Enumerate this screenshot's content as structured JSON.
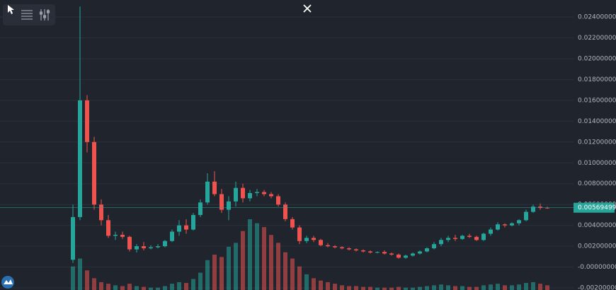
{
  "chart_data": {
    "type": "candlestick",
    "up_color": "#26a69a",
    "down_color": "#ef5350",
    "ylim": [
      -0.0022,
      0.02563
    ],
    "yticks": [
      {
        "value": 0.024,
        "label": "0.024000000"
      },
      {
        "value": 0.022,
        "label": "0.022000000"
      },
      {
        "value": 0.02,
        "label": "0.020000000"
      },
      {
        "value": 0.018,
        "label": "0.018000000"
      },
      {
        "value": 0.016,
        "label": "0.016000000"
      },
      {
        "value": 0.014,
        "label": "0.014000000"
      },
      {
        "value": 0.012,
        "label": "0.012000000"
      },
      {
        "value": 0.01,
        "label": "0.010000000"
      },
      {
        "value": 0.008,
        "label": "0.008000000"
      },
      {
        "value": 0.006,
        "label": "0.006000000"
      },
      {
        "value": 0.004,
        "label": "0.004000000"
      },
      {
        "value": 0.002,
        "label": "0.002000000"
      },
      {
        "value": 0,
        "label": "-0.000000000"
      },
      {
        "value": -0.002,
        "label": "-0.002000000"
      }
    ],
    "grid": true,
    "last_price": 0.005694996,
    "candles": [
      [
        0.0007,
        0.006,
        0.0004,
        0.0048
      ],
      [
        0.0048,
        0.025,
        0.0045,
        0.016
      ],
      [
        0.016,
        0.0165,
        0.011,
        0.012
      ],
      [
        0.012,
        0.0125,
        0.0055,
        0.006
      ],
      [
        0.006,
        0.0065,
        0.004,
        0.0045
      ],
      [
        0.0045,
        0.005,
        0.0028,
        0.003
      ],
      [
        0.003,
        0.0034,
        0.0026,
        0.0031
      ],
      [
        0.0031,
        0.0034,
        0.0027,
        0.0029
      ],
      [
        0.0029,
        0.003,
        0.0015,
        0.0017
      ],
      [
        0.0017,
        0.0022,
        0.0014,
        0.002
      ],
      [
        0.002,
        0.0024,
        0.0016,
        0.0018
      ],
      [
        0.0018,
        0.0021,
        0.0017,
        0.0019
      ],
      [
        0.0019,
        0.0022,
        0.0018,
        0.002
      ],
      [
        0.002,
        0.0026,
        0.0019,
        0.0025
      ],
      [
        0.0025,
        0.0036,
        0.0024,
        0.0034
      ],
      [
        0.0034,
        0.0045,
        0.003,
        0.004
      ],
      [
        0.004,
        0.0046,
        0.0032,
        0.0036
      ],
      [
        0.0036,
        0.0052,
        0.0035,
        0.005
      ],
      [
        0.005,
        0.0065,
        0.0048,
        0.0062
      ],
      [
        0.0062,
        0.009,
        0.006,
        0.0082
      ],
      [
        0.0082,
        0.0092,
        0.0068,
        0.007
      ],
      [
        0.007,
        0.0075,
        0.0052,
        0.0055
      ],
      [
        0.0055,
        0.0068,
        0.0045,
        0.0063
      ],
      [
        0.0063,
        0.0082,
        0.0058,
        0.0076
      ],
      [
        0.0076,
        0.008,
        0.0062,
        0.0066
      ],
      [
        0.0066,
        0.0074,
        0.0063,
        0.0071
      ],
      [
        0.0071,
        0.0075,
        0.0068,
        0.0072
      ],
      [
        0.0072,
        0.0074,
        0.0068,
        0.007
      ],
      [
        0.007,
        0.0072,
        0.0066,
        0.0068
      ],
      [
        0.0068,
        0.007,
        0.0058,
        0.006
      ],
      [
        0.006,
        0.0062,
        0.0044,
        0.0046
      ],
      [
        0.0046,
        0.0048,
        0.0036,
        0.0038
      ],
      [
        0.0038,
        0.004,
        0.0022,
        0.0025
      ],
      [
        0.0025,
        0.003,
        0.0023,
        0.0028
      ],
      [
        0.0028,
        0.003,
        0.0024,
        0.0026
      ],
      [
        0.0026,
        0.0027,
        0.002,
        0.0021
      ],
      [
        0.0021,
        0.0023,
        0.0019,
        0.002
      ],
      [
        0.002,
        0.0021,
        0.0018,
        0.0019
      ],
      [
        0.0019,
        0.002,
        0.0017,
        0.0018
      ],
      [
        0.0018,
        0.0019,
        0.0016,
        0.0017
      ],
      [
        0.0017,
        0.0018,
        0.0015,
        0.0016
      ],
      [
        0.0016,
        0.0017,
        0.0014,
        0.0015
      ],
      [
        0.0015,
        0.0016,
        0.0013,
        0.0014
      ],
      [
        0.0014,
        0.0015,
        0.0013,
        0.00145
      ],
      [
        0.00145,
        0.0016,
        0.0012,
        0.0013
      ],
      [
        0.0013,
        0.0014,
        0.0011,
        0.0012
      ],
      [
        0.0012,
        0.0013,
        0.0008,
        0.0009
      ],
      [
        0.0009,
        0.0012,
        0.0008,
        0.0011
      ],
      [
        0.0011,
        0.0014,
        0.001,
        0.0013
      ],
      [
        0.0013,
        0.0016,
        0.0012,
        0.0015
      ],
      [
        0.0015,
        0.0019,
        0.0014,
        0.0018
      ],
      [
        0.0018,
        0.0024,
        0.0017,
        0.0022
      ],
      [
        0.0022,
        0.0028,
        0.002,
        0.0026
      ],
      [
        0.0026,
        0.003,
        0.0024,
        0.0028
      ],
      [
        0.0028,
        0.0031,
        0.0025,
        0.0027
      ],
      [
        0.0027,
        0.0031,
        0.0026,
        0.003
      ],
      [
        0.003,
        0.0032,
        0.0028,
        0.0029
      ],
      [
        0.0029,
        0.003,
        0.0025,
        0.0026
      ],
      [
        0.0026,
        0.0033,
        0.0025,
        0.0032
      ],
      [
        0.0032,
        0.0038,
        0.003,
        0.0036
      ],
      [
        0.0036,
        0.0043,
        0.0035,
        0.0041
      ],
      [
        0.0041,
        0.0042,
        0.0038,
        0.004
      ],
      [
        0.004,
        0.0043,
        0.0039,
        0.0042
      ],
      [
        0.0042,
        0.0046,
        0.004,
        0.0045
      ],
      [
        0.0045,
        0.0055,
        0.0044,
        0.0053
      ],
      [
        0.0053,
        0.006,
        0.0052,
        0.0058
      ],
      [
        0.0058,
        0.0061,
        0.0055,
        0.0057
      ],
      [
        0.0057,
        0.0058,
        0.0056,
        0.005694996
      ]
    ],
    "volume": [
      30,
      40,
      25,
      15,
      10,
      8,
      6,
      5,
      8,
      5,
      4,
      3,
      3,
      5,
      8,
      10,
      9,
      14,
      22,
      38,
      45,
      42,
      55,
      60,
      75,
      90,
      85,
      80,
      70,
      60,
      48,
      40,
      30,
      20,
      15,
      12,
      10,
      8,
      6,
      5,
      5,
      4,
      4,
      3,
      3,
      3,
      4,
      3,
      3,
      4,
      5,
      6,
      7,
      6,
      5,
      5,
      4,
      4,
      6,
      7,
      8,
      6,
      6,
      7,
      9,
      10,
      8,
      6
    ]
  }
}
